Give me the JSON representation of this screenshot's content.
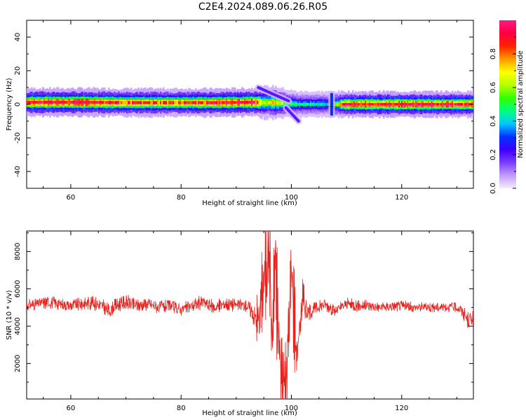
{
  "title": "C2E4.2024.089.06.26.R05",
  "chart_data": [
    {
      "type": "heatmap",
      "xlabel": "Height of straight line (km)",
      "ylabel": "Frequency (Hz)",
      "xlim": [
        52,
        133
      ],
      "ylim": [
        -50,
        50
      ],
      "xticks": [
        60,
        80,
        100,
        120
      ],
      "yticks": [
        -40,
        -20,
        0,
        20,
        40
      ],
      "ridge": [
        {
          "x": 52,
          "y": 1.2,
          "intensity": 0.92,
          "width": 2.6
        },
        {
          "x": 62,
          "y": 1.2,
          "intensity": 0.95,
          "width": 2.6
        },
        {
          "x": 70,
          "y": 1.0,
          "intensity": 0.85,
          "width": 2.6
        },
        {
          "x": 78,
          "y": 1.0,
          "intensity": 0.8,
          "width": 2.6
        },
        {
          "x": 86,
          "y": 1.0,
          "intensity": 0.88,
          "width": 2.6
        },
        {
          "x": 93,
          "y": 1.2,
          "intensity": 0.95,
          "width": 2.6
        },
        {
          "x": 95,
          "y": 1.0,
          "intensity": 0.6,
          "width": 3.0
        },
        {
          "x": 97,
          "y": 1.0,
          "intensity": 0.7,
          "width": 3.0
        },
        {
          "x": 99,
          "y": 0.5,
          "intensity": 0.55,
          "width": 2.6
        },
        {
          "x": 101,
          "y": 0.0,
          "intensity": 0.45,
          "width": 2.4
        },
        {
          "x": 107,
          "y": 0.0,
          "intensity": 0.4,
          "width": 2.4
        },
        {
          "x": 110,
          "y": 0.0,
          "intensity": 0.93,
          "width": 2.4
        },
        {
          "x": 120,
          "y": 0.0,
          "intensity": 0.95,
          "width": 2.4
        },
        {
          "x": 133,
          "y": 0.0,
          "intensity": 0.9,
          "width": 2.4
        }
      ],
      "streaks": [
        {
          "x1": 94.0,
          "y1": 10,
          "x2": 99.5,
          "y2": 2,
          "intensity": 0.2
        },
        {
          "x1": 99.0,
          "y1": -2,
          "x2": 101.3,
          "y2": -10,
          "intensity": 0.2
        },
        {
          "x1": 107.3,
          "y1": 6,
          "x2": 107.3,
          "y2": -6,
          "intensity": 0.3
        }
      ],
      "colorbar": {
        "label": "Normalized spectral amplitude",
        "range": [
          0,
          1
        ],
        "ticks": [
          0.0,
          0.2,
          0.4,
          0.6,
          0.8
        ],
        "colormap": [
          "#f4ecff",
          "#c29bff",
          "#7b3cff",
          "#3b00ff",
          "#0033ff",
          "#00c8ff",
          "#00ff80",
          "#33ff00",
          "#b6ff00",
          "#ffff00",
          "#ff9900",
          "#ff2200",
          "#ff0044",
          "#ff1a80"
        ]
      }
    },
    {
      "type": "line",
      "xlabel": "Height of straight line (km)",
      "ylabel": "SNR (10 * v/v)",
      "xlim": [
        52,
        133
      ],
      "ylim": [
        100,
        9100
      ],
      "xticks": [
        60,
        80,
        100,
        120
      ],
      "yticks": [
        2000,
        4000,
        6000,
        8000
      ],
      "series": [
        {
          "color": "#e8211d",
          "x": [
            52,
            54,
            56,
            58,
            60,
            62,
            64,
            66,
            67,
            68,
            70,
            72,
            74,
            76,
            78,
            80,
            82,
            84,
            86,
            88,
            90,
            92,
            93,
            94,
            95,
            96,
            96.5,
            97,
            98,
            99,
            100,
            101,
            102,
            103,
            104,
            106,
            108,
            110,
            112,
            114,
            116,
            118,
            120,
            122,
            124,
            126,
            128,
            130,
            131,
            132,
            133
          ],
          "y": [
            5100,
            5200,
            5300,
            5200,
            5100,
            5200,
            5300,
            5000,
            4800,
            5100,
            5300,
            5100,
            5200,
            5000,
            5100,
            4900,
            5100,
            5300,
            5000,
            5200,
            5150,
            5100,
            4700,
            4200,
            6500,
            8500,
            3000,
            7500,
            1800,
            600,
            7000,
            2500,
            5500,
            4700,
            4900,
            5200,
            4800,
            5200,
            5100,
            5100,
            5000,
            5050,
            5100,
            5000,
            5050,
            5000,
            5050,
            5000,
            4800,
            4300,
            4500
          ],
          "amplitude": [
            400,
            400,
            450,
            400,
            400,
            450,
            500,
            500,
            450,
            450,
            500,
            450,
            450,
            450,
            400,
            400,
            450,
            500,
            450,
            450,
            450,
            450,
            700,
            1500,
            2600,
            3000,
            2600,
            3200,
            3000,
            2600,
            2600,
            2400,
            1200,
            600,
            450,
            400,
            400,
            400,
            400,
            350,
            350,
            350,
            350,
            350,
            350,
            350,
            350,
            350,
            450,
            550,
            550
          ]
        }
      ]
    }
  ]
}
